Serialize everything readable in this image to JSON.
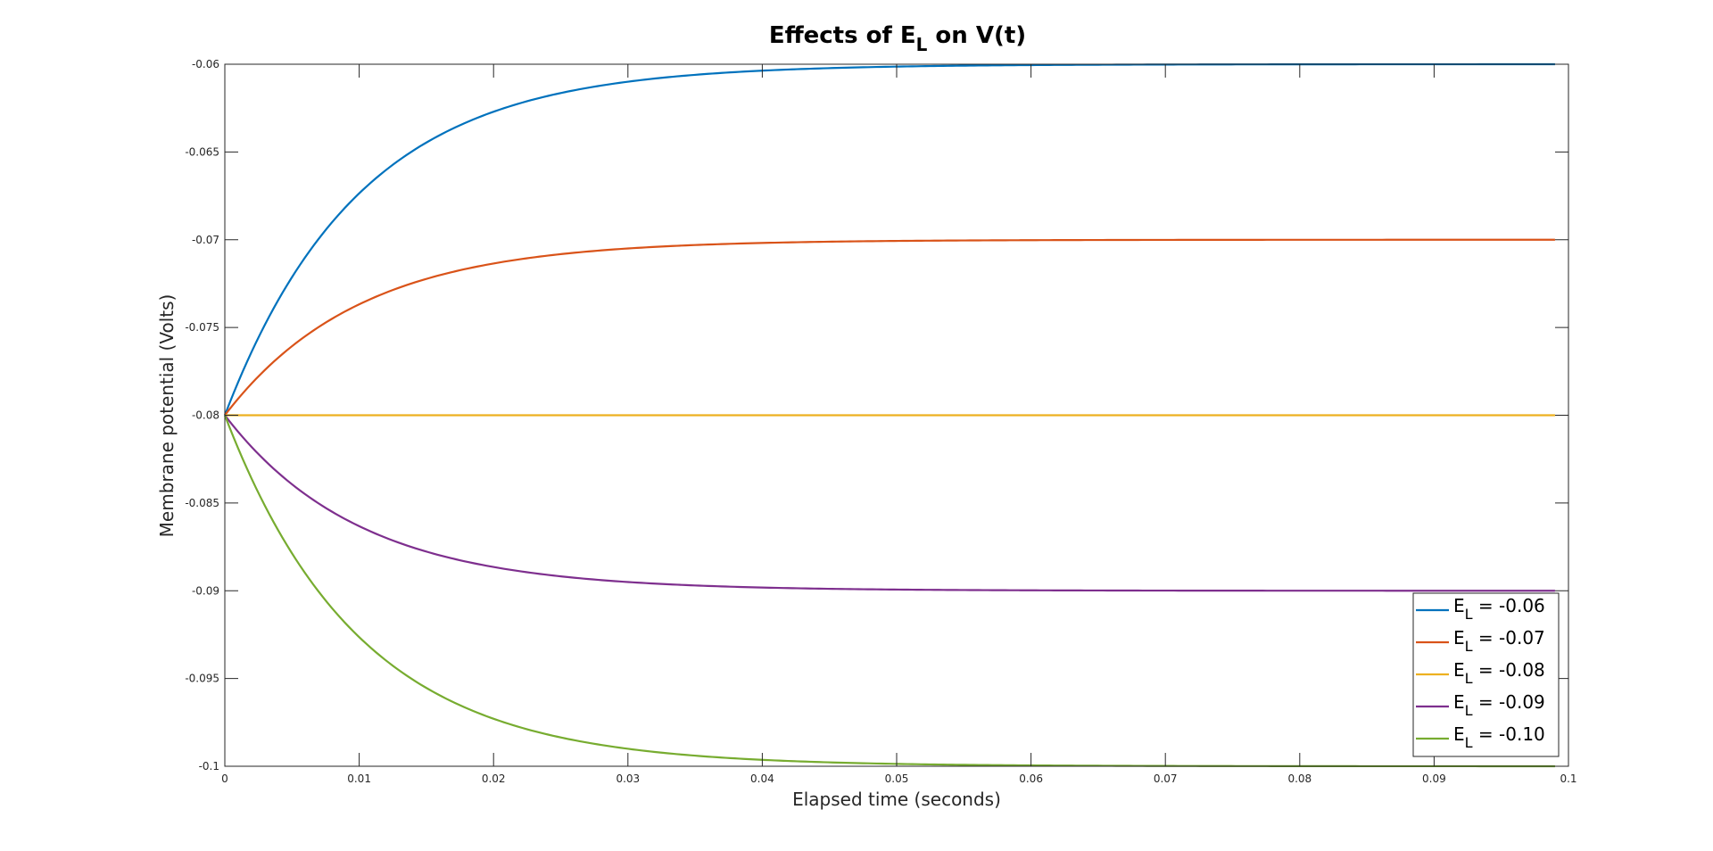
{
  "chart_data": {
    "type": "line",
    "title": {
      "prefix": "Effects of E",
      "subscript": "L",
      "suffix": " on V(t)"
    },
    "xlabel": "Elapsed time (seconds)",
    "ylabel": "Membrane potential (Volts)",
    "xlim": [
      0,
      0.1
    ],
    "ylim": [
      -0.1,
      -0.06
    ],
    "xticks": [
      0,
      0.01,
      0.02,
      0.03,
      0.04,
      0.05,
      0.06,
      0.07,
      0.08,
      0.09,
      0.1
    ],
    "xtick_labels": [
      "0",
      "0.01",
      "0.02",
      "0.03",
      "0.04",
      "0.05",
      "0.06",
      "0.07",
      "0.08",
      "0.09",
      "0.1"
    ],
    "yticks": [
      -0.1,
      -0.095,
      -0.09,
      -0.085,
      -0.08,
      -0.075,
      -0.07,
      -0.065,
      -0.06
    ],
    "ytick_labels": [
      "-0.1",
      "-0.095",
      "-0.09",
      "-0.085",
      "-0.08",
      "-0.075",
      "-0.07",
      "-0.065",
      "-0.06"
    ],
    "grid": false,
    "legend_position": "bottom-right",
    "x_end": 0.099,
    "initial_value": -0.08,
    "time_constant": 0.01,
    "series": [
      {
        "name": "E_L = -0.06",
        "legend_label": {
          "base": "E",
          "sub": "L",
          "rest": " = -0.06"
        },
        "E_L": -0.06,
        "color": "#0072BD"
      },
      {
        "name": "E_L = -0.07",
        "legend_label": {
          "base": "E",
          "sub": "L",
          "rest": " = -0.07"
        },
        "E_L": -0.07,
        "color": "#D95319"
      },
      {
        "name": "E_L = -0.08",
        "legend_label": {
          "base": "E",
          "sub": "L",
          "rest": " = -0.08"
        },
        "E_L": -0.08,
        "color": "#EDB120"
      },
      {
        "name": "E_L = -0.09",
        "legend_label": {
          "base": "E",
          "sub": "L",
          "rest": " = -0.09"
        },
        "E_L": -0.09,
        "color": "#7E2F8E"
      },
      {
        "name": "E_L = -0.10",
        "legend_label": {
          "base": "E",
          "sub": "L",
          "rest": " = -0.10"
        },
        "E_L": -0.1,
        "color": "#77AC30"
      }
    ]
  }
}
